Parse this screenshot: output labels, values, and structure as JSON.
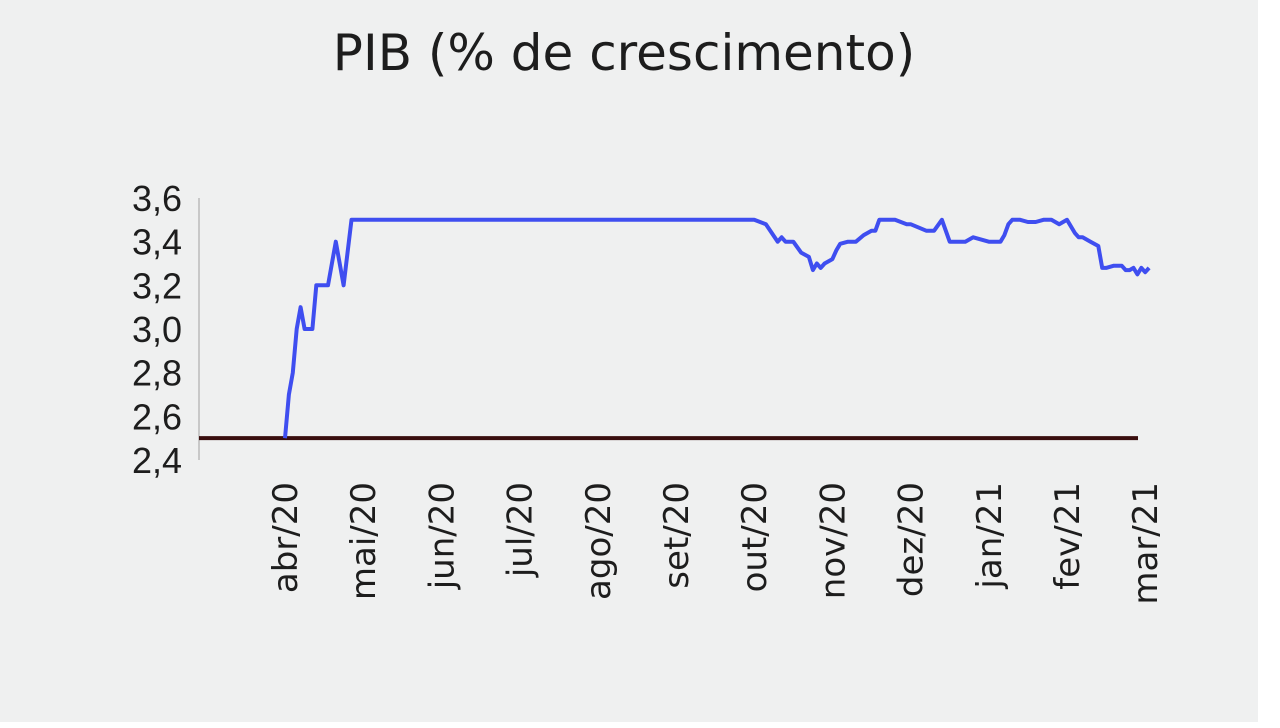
{
  "chart_data": {
    "type": "line",
    "title": "PIB (% de crescimento)",
    "xlabel": "",
    "ylabel": "",
    "ylim": [
      2.4,
      3.6
    ],
    "yticks": [
      "3,6",
      "3,4",
      "3,2",
      "3,0",
      "2,8",
      "2,6",
      "2,4"
    ],
    "ytick_values": [
      3.6,
      3.4,
      3.2,
      3.0,
      2.8,
      2.6,
      2.4
    ],
    "xticks": [
      "abr/20",
      "mai/20",
      "jun/20",
      "jul/20",
      "ago/20",
      "set/20",
      "out/20",
      "nov/20",
      "dez/20",
      "jan/21",
      "fev/21",
      "mar/21"
    ],
    "grid": false,
    "legend": "none",
    "series": [
      {
        "color": "#3f4ef0",
        "x": [
          0.0,
          0.05,
          0.1,
          0.15,
          0.2,
          0.25,
          0.3,
          0.35,
          0.4,
          0.45,
          0.55,
          0.6,
          0.65,
          0.75,
          0.85,
          1.0,
          1.1,
          1.2,
          1.25,
          1.3,
          1.35,
          1.45,
          1.5,
          1.6,
          2.0,
          3.0,
          4.0,
          5.0,
          5.9,
          6.0,
          6.15,
          6.3,
          6.35,
          6.4,
          6.5,
          6.6,
          6.7,
          6.75,
          6.8,
          6.85,
          6.9,
          7.0,
          7.05,
          7.1,
          7.2,
          7.25,
          7.3,
          7.4,
          7.5,
          7.55,
          7.6,
          7.7,
          7.8,
          7.95,
          8.0,
          8.2,
          8.3,
          8.4,
          8.5,
          8.6,
          8.7,
          8.8,
          9.0,
          9.15,
          9.2,
          9.25,
          9.3,
          9.4,
          9.5,
          9.6,
          9.7,
          9.8,
          9.9,
          10.0,
          10.1,
          10.15,
          10.2,
          10.3,
          10.4,
          10.45,
          10.5,
          10.6,
          10.7,
          10.75,
          10.8,
          10.85,
          10.9,
          10.95,
          11.0,
          11.05
        ],
        "values": [
          2.5,
          2.7,
          2.8,
          3.0,
          3.1,
          3.0,
          3.0,
          3.0,
          3.2,
          3.2,
          3.2,
          3.3,
          3.4,
          3.2,
          3.5,
          3.5,
          3.5,
          3.5,
          3.5,
          3.5,
          3.5,
          3.5,
          3.5,
          3.5,
          3.5,
          3.5,
          3.5,
          3.5,
          3.5,
          3.5,
          3.48,
          3.4,
          3.42,
          3.4,
          3.4,
          3.35,
          3.33,
          3.27,
          3.3,
          3.28,
          3.3,
          3.32,
          3.36,
          3.39,
          3.4,
          3.4,
          3.4,
          3.43,
          3.45,
          3.45,
          3.5,
          3.5,
          3.5,
          3.48,
          3.48,
          3.45,
          3.45,
          3.5,
          3.4,
          3.4,
          3.4,
          3.42,
          3.4,
          3.4,
          3.43,
          3.48,
          3.5,
          3.5,
          3.49,
          3.49,
          3.5,
          3.5,
          3.48,
          3.5,
          3.44,
          3.42,
          3.42,
          3.4,
          3.38,
          3.28,
          3.28,
          3.29,
          3.29,
          3.27,
          3.27,
          3.28,
          3.25,
          3.28,
          3.26,
          3.28
        ]
      }
    ],
    "baseline": {
      "value": 2.5,
      "color": "#3a0e0e"
    }
  }
}
